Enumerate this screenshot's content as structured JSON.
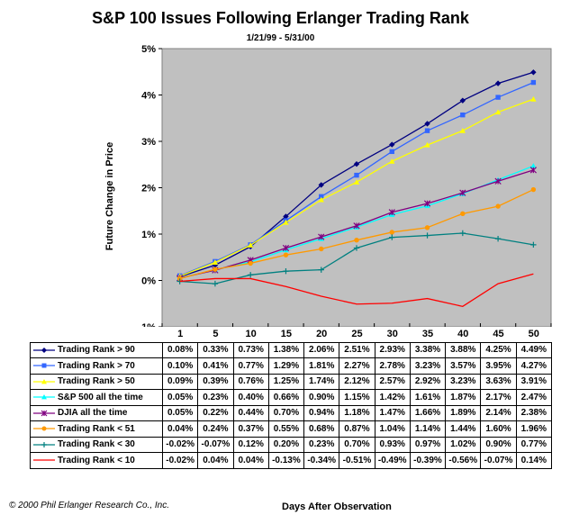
{
  "title": "S&P 100 Issues Following Erlanger Trading Rank",
  "subtitle": "1/21/99 - 5/31/00",
  "copyright": "© 2000 Phil Erlanger Research Co., Inc.",
  "chart_data": {
    "type": "line",
    "title": "S&P 100 Issues Following Erlanger Trading Rank",
    "subtitle": "1/21/99 - 5/31/00",
    "xlabel": "Days After Observation",
    "ylabel": "Future Change in Price",
    "ylim": [
      -1,
      5
    ],
    "y_ticks": [
      "-1%",
      "0%",
      "1%",
      "2%",
      "3%",
      "4%",
      "5%"
    ],
    "grid": false,
    "plot_background": "#c0c0c0",
    "legend_placement": "data table below chart",
    "categories": [
      "1",
      "5",
      "10",
      "15",
      "20",
      "25",
      "30",
      "35",
      "40",
      "45",
      "50"
    ],
    "series": [
      {
        "name": "Trading Rank > 90",
        "color": "#000080",
        "marker": "diamond",
        "values": [
          0.08,
          0.33,
          0.73,
          1.38,
          2.06,
          2.51,
          2.93,
          3.38,
          3.88,
          4.25,
          4.49
        ],
        "labels": [
          "0.08%",
          "0.33%",
          "0.73%",
          "1.38%",
          "2.06%",
          "2.51%",
          "2.93%",
          "3.38%",
          "3.88%",
          "4.25%",
          "4.49%"
        ]
      },
      {
        "name": "Trading Rank > 70",
        "color": "#3366ff",
        "marker": "square",
        "values": [
          0.1,
          0.41,
          0.77,
          1.29,
          1.81,
          2.27,
          2.78,
          3.23,
          3.57,
          3.95,
          4.27
        ],
        "labels": [
          "0.10%",
          "0.41%",
          "0.77%",
          "1.29%",
          "1.81%",
          "2.27%",
          "2.78%",
          "3.23%",
          "3.57%",
          "3.95%",
          "4.27%"
        ]
      },
      {
        "name": "Trading Rank > 50",
        "color": "#ffff00",
        "marker": "triangle",
        "values": [
          0.09,
          0.39,
          0.76,
          1.25,
          1.74,
          2.12,
          2.57,
          2.92,
          3.23,
          3.63,
          3.91
        ],
        "labels": [
          "0.09%",
          "0.39%",
          "0.76%",
          "1.25%",
          "1.74%",
          "2.12%",
          "2.57%",
          "2.92%",
          "3.23%",
          "3.63%",
          "3.91%"
        ]
      },
      {
        "name": "S&P 500 all the time",
        "color": "#00ffff",
        "marker": "triangle",
        "values": [
          0.05,
          0.23,
          0.4,
          0.66,
          0.9,
          1.15,
          1.42,
          1.61,
          1.87,
          2.17,
          2.47
        ],
        "labels": [
          "0.05%",
          "0.23%",
          "0.40%",
          "0.66%",
          "0.90%",
          "1.15%",
          "1.42%",
          "1.61%",
          "1.87%",
          "2.17%",
          "2.47%"
        ]
      },
      {
        "name": "DJIA all the time",
        "color": "#800080",
        "marker": "star",
        "values": [
          0.05,
          0.22,
          0.44,
          0.7,
          0.94,
          1.18,
          1.47,
          1.66,
          1.89,
          2.14,
          2.38
        ],
        "labels": [
          "0.05%",
          "0.22%",
          "0.44%",
          "0.70%",
          "0.94%",
          "1.18%",
          "1.47%",
          "1.66%",
          "1.89%",
          "2.14%",
          "2.38%"
        ]
      },
      {
        "name": "Trading Rank < 51",
        "color": "#ff9900",
        "marker": "circle",
        "values": [
          0.04,
          0.24,
          0.37,
          0.55,
          0.68,
          0.87,
          1.04,
          1.14,
          1.44,
          1.6,
          1.96
        ],
        "labels": [
          "0.04%",
          "0.24%",
          "0.37%",
          "0.55%",
          "0.68%",
          "0.87%",
          "1.04%",
          "1.14%",
          "1.44%",
          "1.60%",
          "1.96%"
        ]
      },
      {
        "name": "Trading Rank < 30",
        "color": "#008080",
        "marker": "plus",
        "values": [
          -0.02,
          -0.07,
          0.12,
          0.2,
          0.23,
          0.7,
          0.93,
          0.97,
          1.02,
          0.9,
          0.77
        ],
        "labels": [
          "-0.02%",
          "-0.07%",
          "0.12%",
          "0.20%",
          "0.23%",
          "0.70%",
          "0.93%",
          "0.97%",
          "1.02%",
          "0.90%",
          "0.77%"
        ]
      },
      {
        "name": "Trading Rank < 10",
        "color": "#ff0000",
        "marker": "dash",
        "values": [
          -0.02,
          0.04,
          0.04,
          -0.13,
          -0.34,
          -0.51,
          -0.49,
          -0.39,
          -0.56,
          -0.07,
          0.14
        ],
        "labels": [
          "-0.02%",
          "0.04%",
          "0.04%",
          "-0.13%",
          "-0.34%",
          "-0.51%",
          "-0.49%",
          "-0.39%",
          "-0.56%",
          "-0.07%",
          "0.14%"
        ]
      }
    ]
  }
}
